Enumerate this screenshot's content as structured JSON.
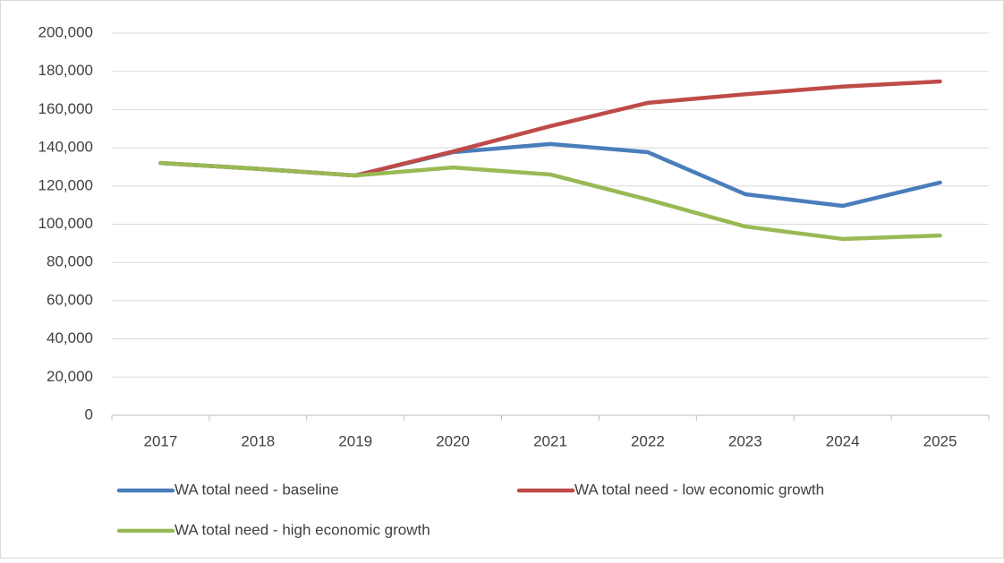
{
  "chart_data": {
    "type": "line",
    "categories": [
      "2017",
      "2018",
      "2019",
      "2020",
      "2021",
      "2022",
      "2023",
      "2024",
      "2025"
    ],
    "series": [
      {
        "name": "WA total need - baseline",
        "color": "#4a7ebb",
        "values": [
          132000,
          129000,
          125500,
          137700,
          142000,
          137700,
          115700,
          109600,
          121800
        ]
      },
      {
        "name": "WA total need - low economic growth",
        "color": "#be4b48",
        "values": [
          132000,
          129000,
          125500,
          138000,
          151300,
          163500,
          168000,
          172000,
          174700
        ]
      },
      {
        "name": "WA total need - high economic growth",
        "color": "#98b954",
        "values": [
          132000,
          129000,
          125500,
          129700,
          126000,
          112900,
          98800,
          92300,
          94100
        ]
      }
    ],
    "ylim": [
      0,
      200000
    ],
    "yticks": [
      0,
      {
        "value": 20000,
        "label": "20,000"
      },
      {
        "value": 40000,
        "label": "40,000"
      },
      {
        "value": 60000,
        "label": "60,000"
      },
      {
        "value": 80000,
        "label": "80,000"
      },
      {
        "value": 100000,
        "label": "100,000"
      },
      {
        "value": 120000,
        "label": "120,000"
      },
      {
        "value": 140000,
        "label": "140,000"
      },
      {
        "value": 160000,
        "label": "160,000"
      },
      {
        "value": 180000,
        "label": "180,000"
      },
      {
        "value": 200000,
        "label": "200,000"
      }
    ],
    "grid": true,
    "legend": "bottom"
  }
}
